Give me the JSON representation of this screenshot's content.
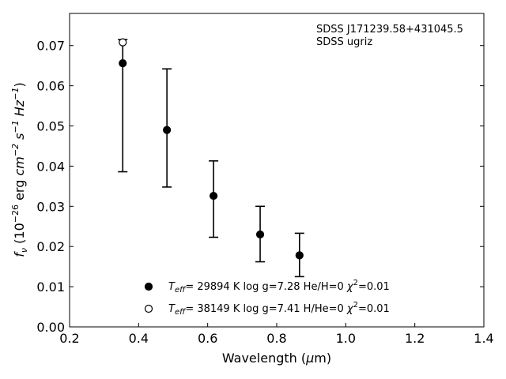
{
  "chart_data": {
    "type": "scatter",
    "xlabel": "Wavelength (μm)",
    "ylabel": "f_ν (10^-26 erg cm^-2 s^-1 Hz^-1)",
    "xlim": [
      0.2,
      1.4
    ],
    "ylim": [
      0.0,
      0.078
    ],
    "x_ticks": [
      "0.2",
      "0.4",
      "0.6",
      "0.8",
      "1.0",
      "1.2",
      "1.4"
    ],
    "y_ticks": [
      "0.00",
      "0.01",
      "0.02",
      "0.03",
      "0.04",
      "0.05",
      "0.06",
      "0.07"
    ],
    "annotation_lines": [
      "SDSS J171239.58+431045.5",
      "SDSS ugriz"
    ],
    "grid": false,
    "legend_position": "bottom-center",
    "observed": {
      "x": [
        0.354,
        0.482,
        0.617,
        0.752,
        0.866
      ],
      "y_upper": [
        0.0715,
        0.0642,
        0.0413,
        0.03,
        0.0233
      ],
      "y_lower": [
        0.0386,
        0.0348,
        0.0223,
        0.0162,
        0.0125
      ]
    },
    "series": [
      {
        "marker": "filled-circle",
        "label_parts": [
          "T",
          "eff",
          "= 29894 K  log g=7.28  He/H=0  ",
          "χ",
          "2",
          "=0.01"
        ],
        "x": [
          0.354,
          0.482,
          0.617,
          0.752,
          0.866
        ],
        "y": [
          0.0656,
          0.049,
          0.0326,
          0.023,
          0.0178
        ]
      },
      {
        "marker": "open-circle",
        "label_parts": [
          "T",
          "eff",
          "= 38149 K  log g=7.41  H/He=0  ",
          "χ",
          "2",
          "=0.01"
        ],
        "x": [
          0.354
        ],
        "y": [
          0.0708
        ]
      }
    ]
  }
}
